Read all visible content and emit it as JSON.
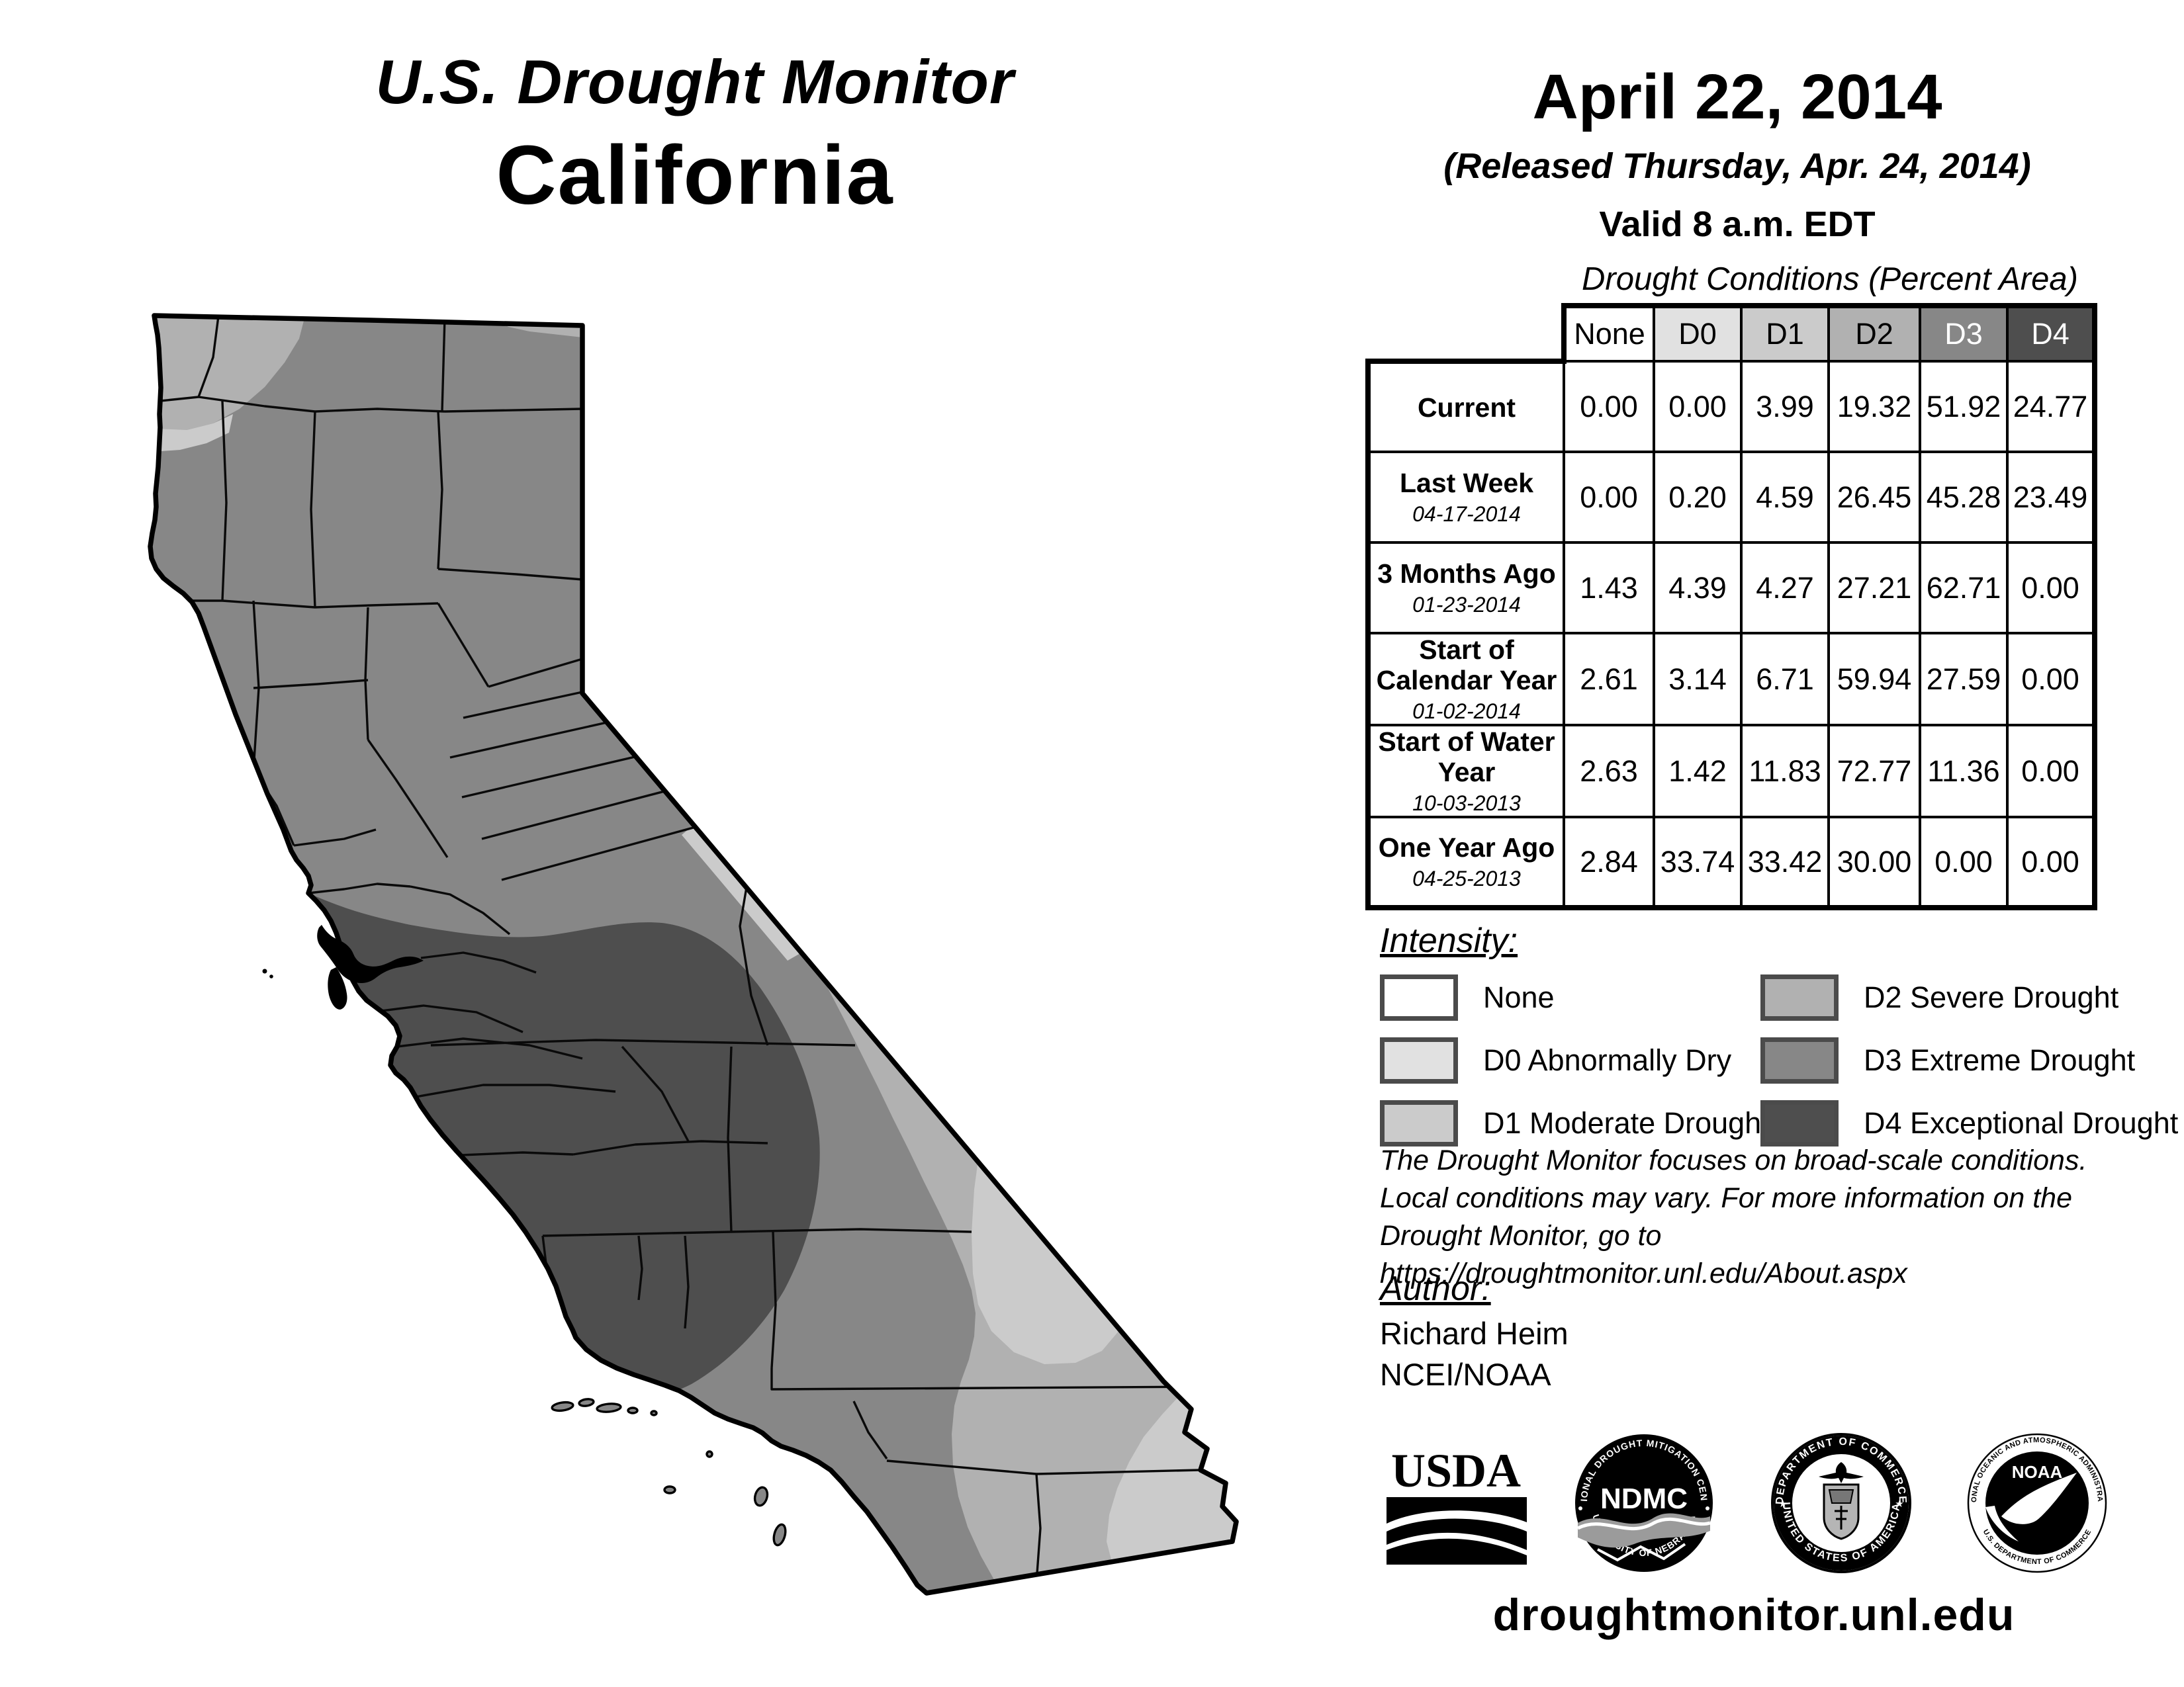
{
  "title": {
    "line1": "U.S. Drought Monitor",
    "line2": "California"
  },
  "date_block": {
    "date": "April 22, 2014",
    "released": "(Released Thursday, Apr. 24, 2014)",
    "valid": "Valid 8 a.m. EDT"
  },
  "table": {
    "title": "Drought Conditions (Percent Area)",
    "columns": [
      "None",
      "D0",
      "D1",
      "D2",
      "D3",
      "D4"
    ],
    "rows": [
      {
        "label": "Current",
        "date": "",
        "values": [
          "0.00",
          "0.00",
          "3.99",
          "19.32",
          "51.92",
          "24.77"
        ]
      },
      {
        "label": "Last Week",
        "date": "04-17-2014",
        "values": [
          "0.00",
          "0.20",
          "4.59",
          "26.45",
          "45.28",
          "23.49"
        ]
      },
      {
        "label": "3 Months Ago",
        "date": "01-23-2014",
        "values": [
          "1.43",
          "4.39",
          "4.27",
          "27.21",
          "62.71",
          "0.00"
        ]
      },
      {
        "label": "Start of Calendar Year",
        "date": "01-02-2014",
        "values": [
          "2.61",
          "3.14",
          "6.71",
          "59.94",
          "27.59",
          "0.00"
        ]
      },
      {
        "label": "Start of Water Year",
        "date": "10-03-2013",
        "values": [
          "2.63",
          "1.42",
          "11.83",
          "72.77",
          "11.36",
          "0.00"
        ]
      },
      {
        "label": "One Year Ago",
        "date": "04-25-2013",
        "values": [
          "2.84",
          "33.74",
          "33.42",
          "30.00",
          "0.00",
          "0.00"
        ]
      }
    ]
  },
  "legend": {
    "title": "Intensity:",
    "items": [
      {
        "key": "none",
        "label": "None"
      },
      {
        "key": "d0",
        "label": "D0 Abnormally Dry"
      },
      {
        "key": "d1",
        "label": "D1 Moderate Drought"
      },
      {
        "key": "d2",
        "label": "D2 Severe Drought"
      },
      {
        "key": "d3",
        "label": "D3 Extreme Drought"
      },
      {
        "key": "d4",
        "label": "D4 Exceptional Drought"
      }
    ]
  },
  "palette": {
    "none": "#ffffff",
    "d0": "#e1e1e1",
    "d1": "#cbcbcb",
    "d2": "#b1b1b1",
    "d3": "#878787",
    "d4": "#4e4e4e"
  },
  "disclaimer_lines": [
    "The Drought Monitor focuses on broad-scale conditions.",
    "Local conditions may vary. For more information on the",
    "Drought Monitor, go to https://droughtmonitor.unl.edu/About.aspx"
  ],
  "author": {
    "label": "Author:",
    "name": "Richard Heim",
    "org": "NCEI/NOAA"
  },
  "logos": {
    "usda": {
      "text": "USDA"
    },
    "ndmc": {
      "top": "NATIONAL DROUGHT MITIGATION CENTER",
      "center": "NDMC",
      "bottom": "UNIVERSITY OF NEBRASKA"
    },
    "doc": {
      "top": "DEPARTMENT OF COMMERCE",
      "bottom": "UNITED STATES OF AMERICA"
    },
    "noaa": {
      "top": "NATIONAL OCEANIC AND ATMOSPHERIC ADMINISTRATION",
      "center": "NOAA",
      "bottom": "U.S. DEPARTMENT OF COMMERCE"
    }
  },
  "url": "droughtmonitor.unl.edu"
}
